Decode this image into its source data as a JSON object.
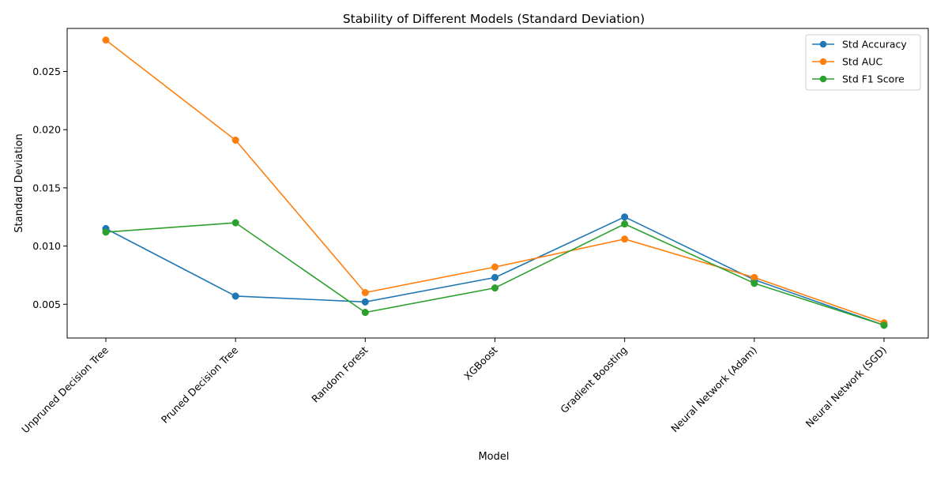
{
  "chart_data": {
    "type": "line",
    "title": "Stability of Different Models (Standard Deviation)",
    "xlabel": "Model",
    "ylabel": "Standard Deviation",
    "categories": [
      "Unpruned Decision Tree",
      "Pruned Decision Tree",
      "Random Forest",
      "XGBoost",
      "Gradient Boosting",
      "Neural Network (Adam)",
      "Neural Network (SGD)"
    ],
    "ylim": [
      0.0021,
      0.0287
    ],
    "yticks": [
      0.005,
      0.01,
      0.015,
      0.02,
      0.025
    ],
    "ytick_labels": [
      "0.005",
      "0.010",
      "0.015",
      "0.020",
      "0.025"
    ],
    "grid": false,
    "legend_position": "top-right",
    "series": [
      {
        "name": "Std Accuracy",
        "color": "#1f77b4",
        "values": [
          0.0115,
          0.0057,
          0.0052,
          0.0073,
          0.0125,
          0.0071,
          0.0032
        ]
      },
      {
        "name": "Std AUC",
        "color": "#ff7f0e",
        "values": [
          0.0277,
          0.0191,
          0.006,
          0.0082,
          0.0106,
          0.0073,
          0.0034
        ]
      },
      {
        "name": "Std F1 Score",
        "color": "#2ca02c",
        "values": [
          0.0112,
          0.012,
          0.0043,
          0.0064,
          0.0119,
          0.0068,
          0.0032
        ]
      }
    ]
  }
}
